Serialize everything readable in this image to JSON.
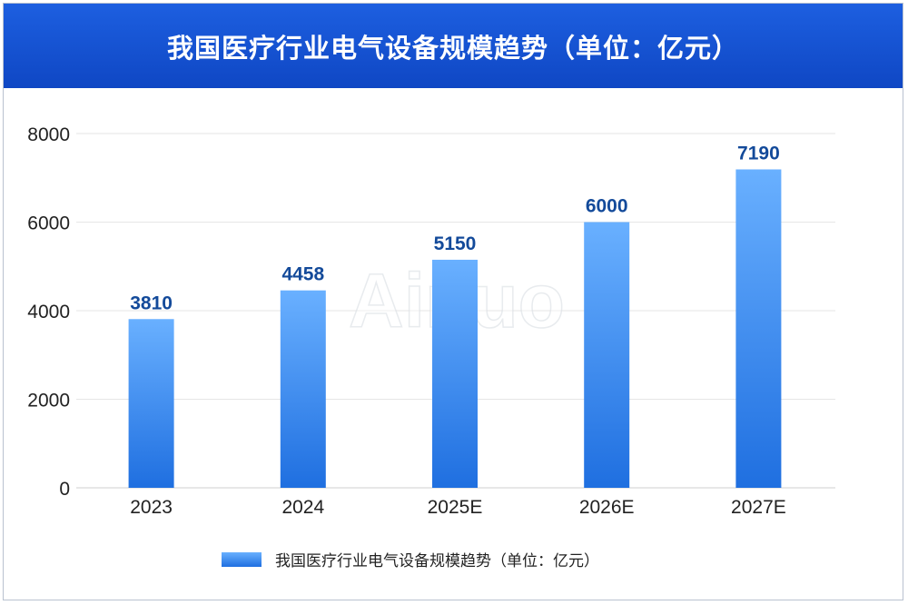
{
  "header": {
    "title": "我国医疗行业电气设备规模趋势（单位：亿元）"
  },
  "watermark": "Ainuo",
  "colors": {
    "header_bg": "#1453d6",
    "bar_top": "#69b0ff",
    "bar_bottom": "#1f6fe0",
    "data_label": "#134a9a",
    "grid": "#e6e6e6"
  },
  "chart_data": {
    "type": "bar",
    "categories": [
      "2023",
      "2024",
      "2025E",
      "2026E",
      "2027E"
    ],
    "series": [
      {
        "name": "我国医疗行业电气设备规模趋势（单位：亿元）",
        "values": [
          3810,
          4458,
          5150,
          6000,
          7190
        ]
      }
    ],
    "data_labels": [
      "3810",
      "4458",
      "5150",
      "6000",
      "7190"
    ],
    "yticks": [
      "0",
      "2000",
      "4000",
      "6000",
      "8000"
    ],
    "ylim": [
      0,
      8000
    ],
    "grid": true,
    "legend": "bottom"
  }
}
